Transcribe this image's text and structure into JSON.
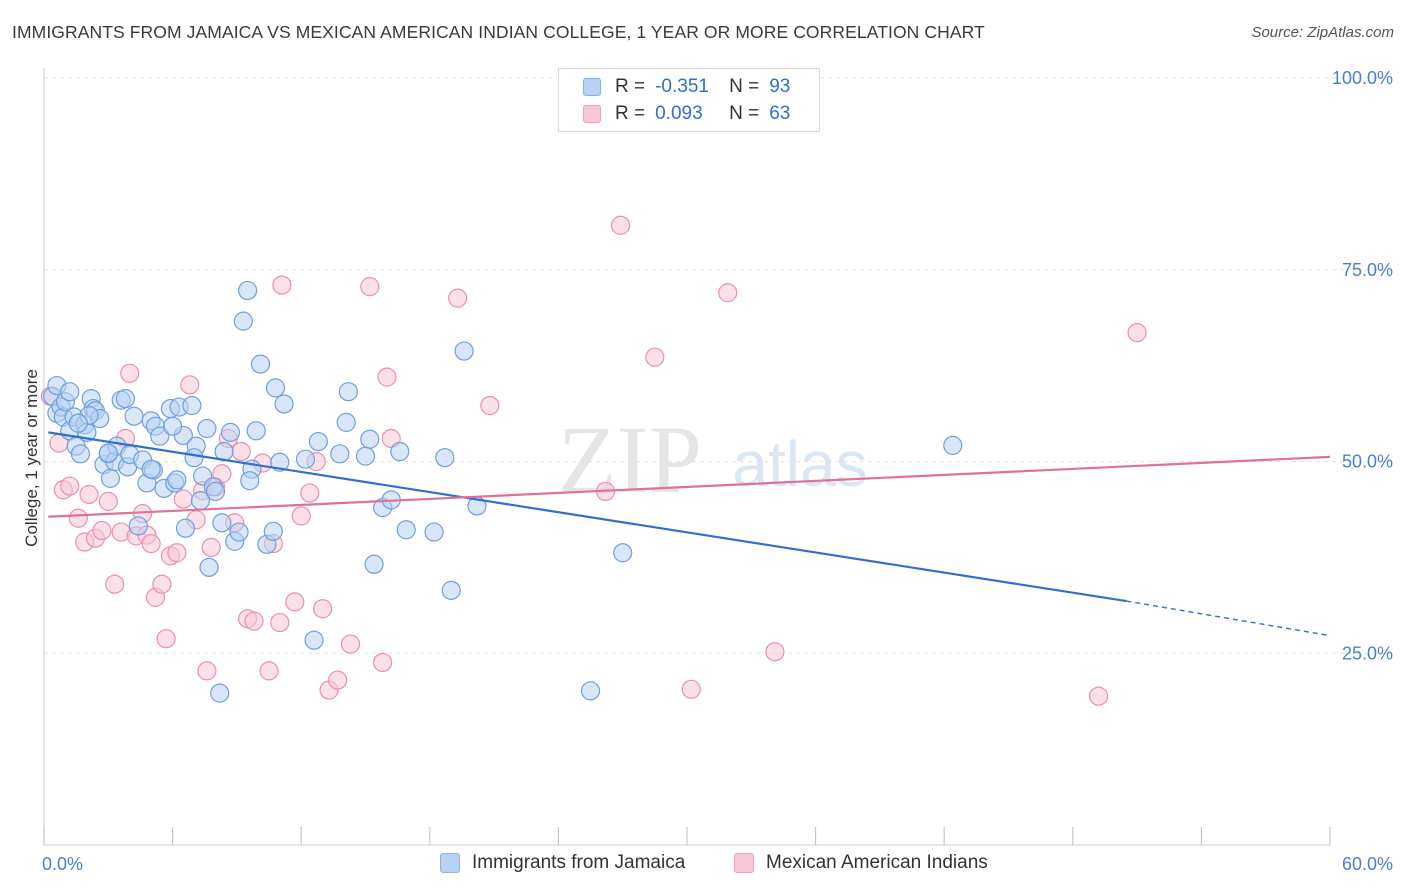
{
  "title": "IMMIGRANTS FROM JAMAICA VS MEXICAN AMERICAN INDIAN COLLEGE, 1 YEAR OR MORE CORRELATION CHART",
  "source": "Source: ZipAtlas.com",
  "watermark": {
    "zip": "ZIP",
    "atlas": "atlas"
  },
  "legend": {
    "r_label": "R =",
    "n_label": "N =",
    "series": [
      {
        "r": "-0.351",
        "n": "93",
        "color": "#b8d1f3"
      },
      {
        "r": "0.093",
        "n": "63",
        "color": "#f8c6d6"
      }
    ]
  },
  "colors": {
    "blue_fill": "#b8d1f3",
    "blue_stroke": "#6f9fe0",
    "blue_line": "#2f6fd0",
    "pink_fill": "#f8c6d6",
    "pink_stroke": "#ea8fb0",
    "pink_line": "#e0709a",
    "grid": "#e3e3e3",
    "axis_text": "#4a7fd1"
  },
  "chart_data": {
    "type": "scatter",
    "title": "IMMIGRANTS FROM JAMAICA VS MEXICAN AMERICAN INDIAN COLLEGE, 1 YEAR OR MORE CORRELATION CHART",
    "xlabel": "",
    "ylabel": "College, 1 year or more",
    "xlim": [
      0,
      60
    ],
    "ylim": [
      0,
      105
    ],
    "x_tick_labels": [
      "0.0%",
      "60.0%"
    ],
    "y_ticks": [
      25,
      50,
      75,
      100
    ],
    "y_tick_labels": [
      "25.0%",
      "50.0%",
      "75.0%",
      "100.0%"
    ],
    "x_minor_ticks": [
      0,
      6,
      12,
      18,
      24,
      30,
      36,
      42,
      48,
      54,
      60
    ],
    "grid": true,
    "legend_position": "top-center",
    "series": [
      {
        "name": "Immigrants from Jamaica",
        "r": -0.351,
        "n": 93,
        "trend": {
          "x0": 0.2,
          "y0": 53.8,
          "x1": 50.5,
          "y1": 31.8,
          "dash_to_x": 60,
          "dash_to_y": 27.3
        },
        "points": [
          [
            0.4,
            58.5
          ],
          [
            0.6,
            56.3
          ],
          [
            0.6,
            59.9
          ],
          [
            0.8,
            57.1
          ],
          [
            0.9,
            55.8
          ],
          [
            1.0,
            57.8
          ],
          [
            1.2,
            59.1
          ],
          [
            1.2,
            54.0
          ],
          [
            1.4,
            55.8
          ],
          [
            1.5,
            52.0
          ],
          [
            1.7,
            51.0
          ],
          [
            1.9,
            54.8
          ],
          [
            2.0,
            53.8
          ],
          [
            2.2,
            58.2
          ],
          [
            2.3,
            56.9
          ],
          [
            2.4,
            56.6
          ],
          [
            2.6,
            55.6
          ],
          [
            2.8,
            49.6
          ],
          [
            3.0,
            51.0
          ],
          [
            3.1,
            47.8
          ],
          [
            3.3,
            50.0
          ],
          [
            3.4,
            52.0
          ],
          [
            3.6,
            58.0
          ],
          [
            3.8,
            58.2
          ],
          [
            3.9,
            49.3
          ],
          [
            4.0,
            50.9
          ],
          [
            4.2,
            55.9
          ],
          [
            4.4,
            41.6
          ],
          [
            4.6,
            50.2
          ],
          [
            4.8,
            47.2
          ],
          [
            5.0,
            55.3
          ],
          [
            5.1,
            48.9
          ],
          [
            5.2,
            54.6
          ],
          [
            5.4,
            53.3
          ],
          [
            5.6,
            46.5
          ],
          [
            5.9,
            56.9
          ],
          [
            6.1,
            47.2
          ],
          [
            6.2,
            47.6
          ],
          [
            6.3,
            57.1
          ],
          [
            6.5,
            53.4
          ],
          [
            6.6,
            41.3
          ],
          [
            6.9,
            57.3
          ],
          [
            7.1,
            52.0
          ],
          [
            7.3,
            44.9
          ],
          [
            7.4,
            48.1
          ],
          [
            7.6,
            54.3
          ],
          [
            7.7,
            36.2
          ],
          [
            7.9,
            46.7
          ],
          [
            8.0,
            46.1
          ],
          [
            8.2,
            19.8
          ],
          [
            8.3,
            42.0
          ],
          [
            8.4,
            51.3
          ],
          [
            8.7,
            53.8
          ],
          [
            8.9,
            39.6
          ],
          [
            9.1,
            40.8
          ],
          [
            9.3,
            68.3
          ],
          [
            9.5,
            72.3
          ],
          [
            9.7,
            49.0
          ],
          [
            9.9,
            54.0
          ],
          [
            10.1,
            62.7
          ],
          [
            10.4,
            39.2
          ],
          [
            10.7,
            40.9
          ],
          [
            10.8,
            59.6
          ],
          [
            11.0,
            49.9
          ],
          [
            11.2,
            57.5
          ],
          [
            12.2,
            50.3
          ],
          [
            12.6,
            26.7
          ],
          [
            12.8,
            52.6
          ],
          [
            13.8,
            51.0
          ],
          [
            14.1,
            55.1
          ],
          [
            14.2,
            59.1
          ],
          [
            15.0,
            50.7
          ],
          [
            15.2,
            52.9
          ],
          [
            15.4,
            36.6
          ],
          [
            15.8,
            44.0
          ],
          [
            16.2,
            45.0
          ],
          [
            16.6,
            51.3
          ],
          [
            16.9,
            41.1
          ],
          [
            18.2,
            40.8
          ],
          [
            18.7,
            50.5
          ],
          [
            19.0,
            33.2
          ],
          [
            19.6,
            64.4
          ],
          [
            20.2,
            44.2
          ],
          [
            25.5,
            20.1
          ],
          [
            27.0,
            38.1
          ],
          [
            42.4,
            52.1
          ],
          [
            5.0,
            49.0
          ],
          [
            6.0,
            54.6
          ],
          [
            7.0,
            50.5
          ],
          [
            3.0,
            51.1
          ],
          [
            2.1,
            56.0
          ],
          [
            1.6,
            55.0
          ],
          [
            9.6,
            47.5
          ]
        ]
      },
      {
        "name": "Mexican American Indians",
        "r": 0.093,
        "n": 63,
        "trend": {
          "x0": 0.2,
          "y0": 42.8,
          "x1": 60,
          "y1": 50.6
        },
        "points": [
          [
            0.3,
            58.5
          ],
          [
            0.7,
            52.4
          ],
          [
            0.9,
            46.3
          ],
          [
            1.2,
            46.8
          ],
          [
            1.6,
            42.6
          ],
          [
            1.9,
            39.5
          ],
          [
            2.1,
            45.7
          ],
          [
            2.4,
            40.0
          ],
          [
            2.7,
            41.0
          ],
          [
            3.0,
            44.8
          ],
          [
            3.3,
            34.0
          ],
          [
            3.6,
            40.8
          ],
          [
            3.8,
            53.0
          ],
          [
            4.0,
            61.5
          ],
          [
            4.3,
            40.3
          ],
          [
            4.6,
            43.2
          ],
          [
            4.8,
            40.4
          ],
          [
            5.0,
            39.3
          ],
          [
            5.2,
            32.3
          ],
          [
            5.5,
            34.0
          ],
          [
            5.7,
            26.9
          ],
          [
            5.9,
            37.7
          ],
          [
            6.2,
            38.1
          ],
          [
            6.5,
            45.1
          ],
          [
            6.8,
            60.0
          ],
          [
            7.1,
            42.4
          ],
          [
            7.4,
            46.2
          ],
          [
            7.6,
            22.7
          ],
          [
            8.0,
            46.7
          ],
          [
            8.3,
            48.4
          ],
          [
            8.6,
            53.0
          ],
          [
            8.9,
            42.0
          ],
          [
            9.2,
            51.3
          ],
          [
            9.5,
            29.5
          ],
          [
            9.8,
            29.2
          ],
          [
            10.2,
            49.8
          ],
          [
            10.5,
            22.7
          ],
          [
            10.7,
            39.3
          ],
          [
            11.1,
            73.0
          ],
          [
            11.7,
            31.7
          ],
          [
            12.0,
            42.9
          ],
          [
            12.4,
            45.9
          ],
          [
            12.7,
            50.0
          ],
          [
            13.0,
            30.8
          ],
          [
            13.3,
            20.2
          ],
          [
            13.7,
            21.5
          ],
          [
            14.3,
            26.2
          ],
          [
            15.2,
            72.8
          ],
          [
            15.8,
            23.8
          ],
          [
            16.0,
            61.0
          ],
          [
            16.2,
            53.0
          ],
          [
            19.3,
            71.3
          ],
          [
            20.8,
            57.3
          ],
          [
            26.2,
            46.1
          ],
          [
            26.9,
            80.8
          ],
          [
            28.5,
            63.6
          ],
          [
            30.2,
            20.3
          ],
          [
            31.9,
            72.0
          ],
          [
            34.1,
            25.2
          ],
          [
            49.2,
            19.4
          ],
          [
            51.0,
            66.8
          ],
          [
            11.0,
            29.0
          ],
          [
            7.8,
            38.8
          ]
        ]
      }
    ]
  }
}
